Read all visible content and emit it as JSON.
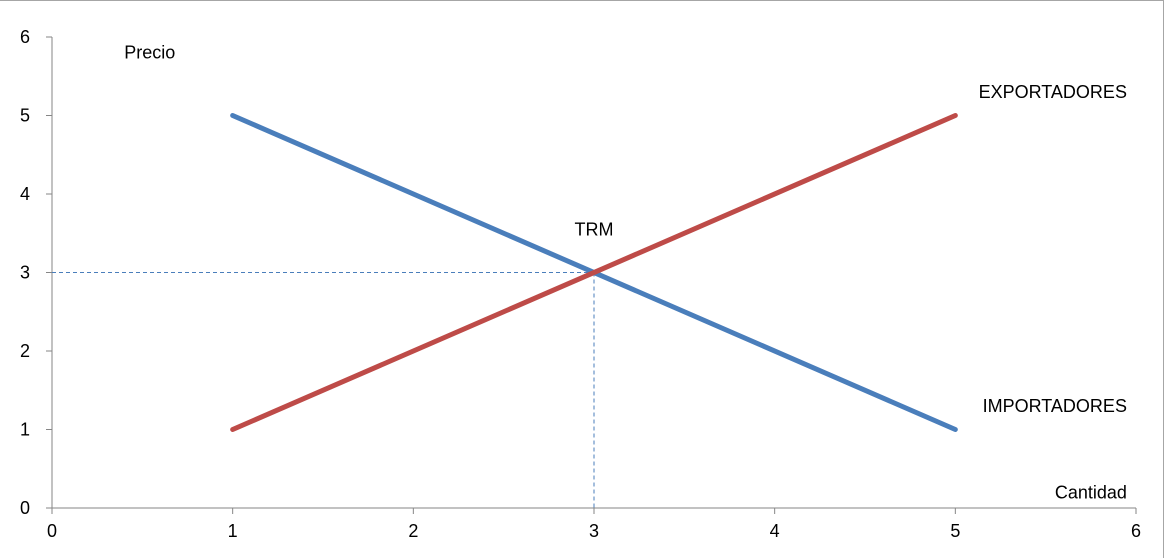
{
  "chart_data": {
    "type": "line",
    "title": "",
    "xlim": [
      0,
      6
    ],
    "ylim": [
      0,
      6
    ],
    "x_ticks": [
      0,
      1,
      2,
      3,
      4,
      5,
      6
    ],
    "y_ticks": [
      0,
      1,
      2,
      3,
      4,
      5,
      6
    ],
    "grid": false,
    "legend": "none",
    "series": [
      {
        "name": "IMPORTADORES",
        "color": "#4a7ebb",
        "points": [
          [
            1,
            5
          ],
          [
            5,
            1
          ]
        ]
      },
      {
        "name": "EXPORTADORES",
        "color": "#be4b48",
        "points": [
          [
            1,
            1
          ],
          [
            5,
            5
          ]
        ]
      }
    ],
    "reference_point": {
      "x": 3,
      "y": 3,
      "color": "#4a7ebb",
      "style": "dashed"
    },
    "annotations": {
      "y_axis": {
        "text": "Precio",
        "x": 0.4,
        "y": 5.8
      },
      "x_axis": {
        "text": "Cantidad",
        "x": 5.95,
        "y": 0.2
      },
      "equilibrium": {
        "text": "TRM",
        "x": 3.0,
        "y": 3.55
      },
      "exporters": {
        "text": "EXPORTADORES",
        "x": 5.95,
        "y": 5.3
      },
      "importers": {
        "text": "IMPORTADORES",
        "x": 5.95,
        "y": 1.3
      }
    },
    "axis_color": "#868686"
  }
}
